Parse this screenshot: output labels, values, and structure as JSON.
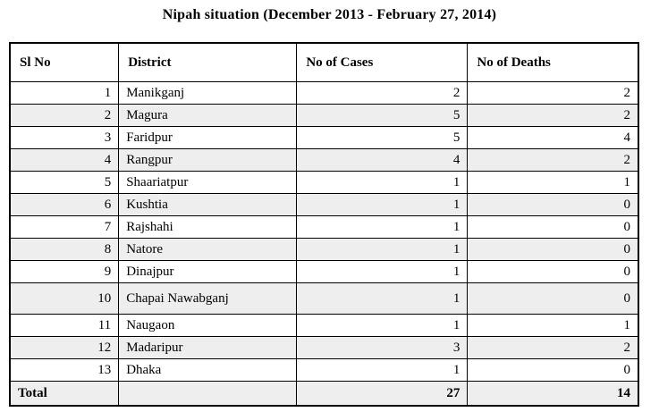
{
  "title": "Nipah situation (December 2013 - February 27, 2014)",
  "table": {
    "columns": [
      "Sl No",
      "District",
      "No of Cases",
      "No of Deaths"
    ],
    "rows": [
      {
        "sl": "1",
        "district": "Manikganj",
        "cases": "2",
        "deaths": "2"
      },
      {
        "sl": "2",
        "district": "Magura",
        "cases": "5",
        "deaths": "2"
      },
      {
        "sl": "3",
        "district": "Faridpur",
        "cases": "5",
        "deaths": "4"
      },
      {
        "sl": "4",
        "district": "Rangpur",
        "cases": "4",
        "deaths": "2"
      },
      {
        "sl": "5",
        "district": "Shaariatpur",
        "cases": "1",
        "deaths": "1"
      },
      {
        "sl": "6",
        "district": "Kushtia",
        "cases": "1",
        "deaths": "0"
      },
      {
        "sl": "7",
        "district": "Rajshahi",
        "cases": "1",
        "deaths": "0"
      },
      {
        "sl": "8",
        "district": "Natore",
        "cases": "1",
        "deaths": "0"
      },
      {
        "sl": "9",
        "district": "Dinajpur",
        "cases": "1",
        "deaths": "0"
      },
      {
        "sl": "10",
        "district": "Chapai Nawabganj",
        "cases": "1",
        "deaths": "0"
      },
      {
        "sl": "11",
        "district": "Naugaon",
        "cases": "1",
        "deaths": "1"
      },
      {
        "sl": "12",
        "district": "Madaripur",
        "cases": "3",
        "deaths": "2"
      },
      {
        "sl": "13",
        "district": "Dhaka",
        "cases": "1",
        "deaths": "0"
      }
    ],
    "total": {
      "label": "Total",
      "cases": "27",
      "deaths": "14"
    }
  },
  "colors": {
    "background": "#ffffff",
    "row_alternate": "#eeeeee",
    "border": "#000000",
    "text": "#000000"
  }
}
